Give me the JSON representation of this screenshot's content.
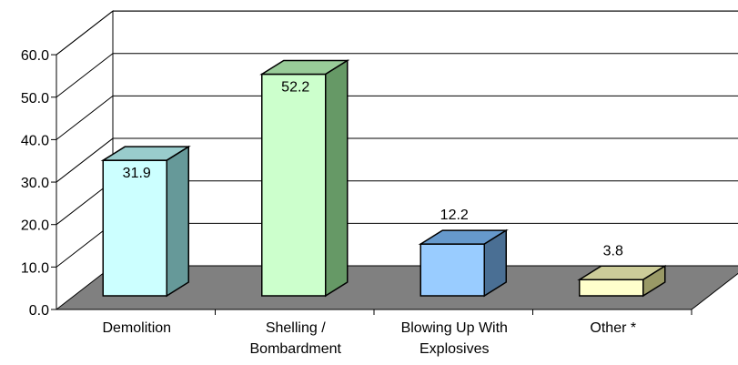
{
  "chart_data": {
    "type": "bar",
    "style": "3d-column",
    "categories": [
      [
        "Demolition"
      ],
      [
        "Shelling /",
        "Bombardment"
      ],
      [
        "Blowing Up With",
        "Explosives"
      ],
      [
        "Other *"
      ]
    ],
    "values": [
      31.9,
      52.2,
      12.2,
      3.8
    ],
    "value_labels": [
      "31.9",
      "52.2",
      "12.2",
      "3.8"
    ],
    "ylim": [
      0,
      60
    ],
    "y_ticks": [
      "0.0",
      "10.0",
      "20.0",
      "30.0",
      "40.0",
      "50.0",
      "60.0"
    ],
    "title": "",
    "xlabel": "",
    "ylabel": "",
    "grid": true,
    "legend": "none",
    "colors": {
      "bars": [
        {
          "front": "#ccffff",
          "top": "#99cccc",
          "side": "#669999"
        },
        {
          "front": "#ccffcc",
          "top": "#99cc99",
          "side": "#669966"
        },
        {
          "front": "#99ccff",
          "top": "#6699cc",
          "side": "#4a6f94"
        },
        {
          "front": "#ffffcc",
          "top": "#cccc99",
          "side": "#999966"
        }
      ],
      "floor": "#808080",
      "grid": "#000000"
    }
  }
}
